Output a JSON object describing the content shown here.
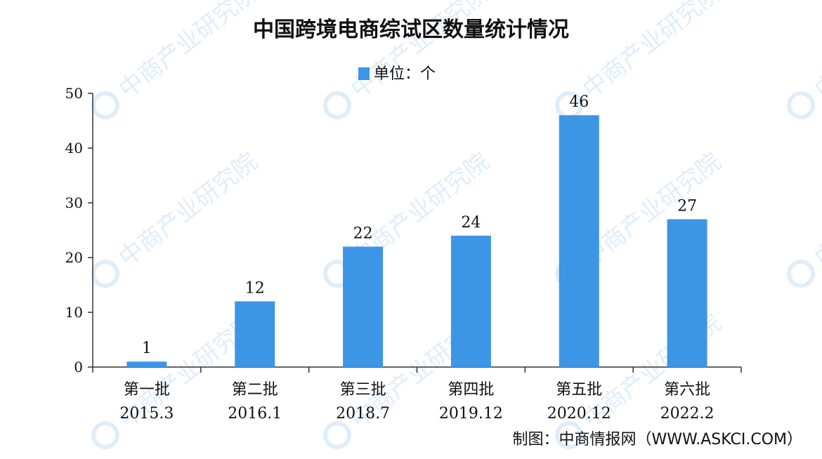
{
  "chart_data": {
    "type": "bar",
    "title": "中国跨境电商综试区数量统计情况",
    "legend": {
      "label": "单位：个",
      "placement": "top-center"
    },
    "categories": [
      "第一批",
      "第二批",
      "第三批",
      "第四批",
      "第五批",
      "第六批"
    ],
    "dates": [
      "2015.3",
      "2016.1",
      "2018.7",
      "2019.12",
      "2020.12",
      "2022.2"
    ],
    "values": [
      1,
      12,
      22,
      24,
      46,
      27
    ],
    "ylim": [
      0,
      50
    ],
    "yticks": [
      0,
      10,
      20,
      30,
      40,
      50
    ],
    "grid": false,
    "bar_color": "#3d95e6"
  },
  "source": "制图：中商情报网（WWW.ASKCI.COM）",
  "watermark": "中商产业研究院"
}
